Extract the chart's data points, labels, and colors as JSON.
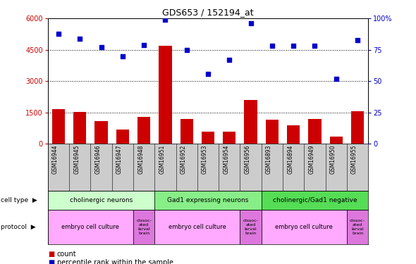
{
  "title": "GDS653 / 152194_at",
  "samples": [
    "GSM16944",
    "GSM16945",
    "GSM16946",
    "GSM16947",
    "GSM16948",
    "GSM16951",
    "GSM16952",
    "GSM16953",
    "GSM16954",
    "GSM16956",
    "GSM16893",
    "GSM16894",
    "GSM16949",
    "GSM16950",
    "GSM16955"
  ],
  "counts": [
    1680,
    1530,
    1100,
    700,
    1280,
    4700,
    1200,
    600,
    600,
    2100,
    1150,
    900,
    1200,
    350,
    1550
  ],
  "percentile_ranks": [
    88,
    84,
    77,
    70,
    79,
    99,
    75,
    56,
    67,
    96,
    78,
    78,
    78,
    52,
    83
  ],
  "cell_types": [
    {
      "label": "cholinergic neurons",
      "start": 0,
      "end": 5,
      "color": "#ccffcc"
    },
    {
      "label": "Gad1 expressing neurons",
      "start": 5,
      "end": 10,
      "color": "#88ee88"
    },
    {
      "label": "cholinergic/Gad1 negative",
      "start": 10,
      "end": 15,
      "color": "#55dd55"
    }
  ],
  "protocols": [
    {
      "label": "embryo cell culture",
      "start": 0,
      "end": 4
    },
    {
      "label": "dissoc-\nated\nlarval\nbrain",
      "start": 4,
      "end": 5
    },
    {
      "label": "embryo cell culture",
      "start": 5,
      "end": 9
    },
    {
      "label": "dissoc-\nated\nlarval\nbrain",
      "start": 9,
      "end": 10
    },
    {
      "label": "embryo cell culture",
      "start": 10,
      "end": 14
    },
    {
      "label": "dissoc-\nated\nlarval\nbrain",
      "start": 14,
      "end": 15
    }
  ],
  "protocol_embryo_color": "#ffaaff",
  "protocol_dissoc_color": "#dd77dd",
  "ylim_left": [
    0,
    6000
  ],
  "ylim_right": [
    0,
    100
  ],
  "yticks_left": [
    0,
    1500,
    3000,
    4500,
    6000
  ],
  "yticks_right": [
    0,
    25,
    50,
    75,
    100
  ],
  "bar_color": "#cc0000",
  "scatter_color": "#0000cc",
  "sample_label_bg": "#cccccc"
}
